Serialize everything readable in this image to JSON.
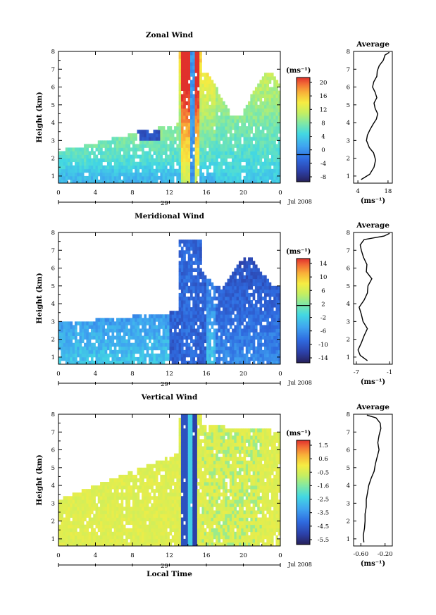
{
  "figure": {
    "xlabel": "Local Time",
    "x_ticks": [
      "0",
      "4",
      "8",
      "12",
      "16",
      "20",
      "0"
    ],
    "date_number": "29",
    "date_month": "Jul 2008",
    "height_label": "Height (km)",
    "height_ticks": [
      "1",
      "2",
      "3",
      "4",
      "5",
      "6",
      "7",
      "8"
    ],
    "avg_title": "Average",
    "unit_label": "(ms⁻¹)"
  },
  "chart_data": [
    {
      "type": "heatmap",
      "title": "Zonal Wind",
      "ylabel": "Height (km)",
      "xlabel": "",
      "x_range": [
        0,
        24
      ],
      "ylim": [
        0.6,
        8.0
      ],
      "colorbar": {
        "ticks": [
          "20",
          "16",
          "12",
          "8",
          "4",
          "0",
          "-4",
          "-8"
        ],
        "min": -10,
        "max": 22
      },
      "profile": {
        "title": "Average",
        "x_ticks": [
          "4",
          "18"
        ],
        "xlim": [
          2,
          20
        ],
        "heights": [
          0.8,
          1.1,
          1.5,
          1.9,
          2.3,
          2.6,
          3.0,
          3.3,
          3.6,
          3.9,
          4.2,
          4.5,
          4.8,
          5.1,
          5.4,
          5.7,
          6.0,
          6.3,
          6.6,
          6.9,
          7.2,
          7.5,
          7.8,
          7.95
        ],
        "values": [
          5.5,
          9.5,
          11.5,
          12.2,
          11.3,
          9.3,
          8.0,
          8.4,
          9.6,
          11.0,
          12.6,
          13.2,
          12.0,
          11.5,
          12.8,
          12.0,
          10.8,
          11.4,
          12.8,
          13.0,
          13.9,
          15.8,
          16.6,
          18.6
        ]
      }
    },
    {
      "type": "heatmap",
      "title": "Meridional Wind",
      "ylabel": "Height (km)",
      "xlabel": "",
      "x_range": [
        0,
        24
      ],
      "ylim": [
        0.6,
        8.0
      ],
      "colorbar": {
        "ticks": [
          "14",
          "10",
          "6",
          "2",
          "-2",
          "-6",
          "-10",
          "-14"
        ],
        "min": -16,
        "max": 16
      },
      "profile": {
        "title": "Average",
        "x_ticks": [
          "-7",
          "-1"
        ],
        "xlim": [
          -7.5,
          -0.5
        ],
        "heights": [
          0.8,
          1.1,
          1.4,
          1.8,
          2.2,
          2.6,
          3.0,
          3.4,
          3.8,
          4.2,
          4.6,
          5.0,
          5.4,
          5.8,
          6.2,
          6.6,
          7.0,
          7.3,
          7.6,
          7.8,
          7.95
        ],
        "values": [
          -5.0,
          -6.3,
          -6.7,
          -6.1,
          -5.6,
          -5.0,
          -5.8,
          -6.1,
          -6.5,
          -5.6,
          -5.0,
          -4.9,
          -4.2,
          -5.2,
          -5.1,
          -5.7,
          -6.1,
          -6.3,
          -5.6,
          -2.0,
          -1.0
        ]
      }
    },
    {
      "type": "heatmap",
      "title": "Vertical Wind",
      "ylabel": "Height (km)",
      "xlabel": "Local Time",
      "x_range": [
        0,
        24
      ],
      "ylim": [
        0.6,
        8.0
      ],
      "colorbar": {
        "ticks": [
          "1.5",
          "0.6",
          "-0.5",
          "-1.6",
          "-2.5",
          "-3.5",
          "-4.5",
          "-5.5"
        ],
        "min": -6.0,
        "max": 2.0
      },
      "profile": {
        "title": "Average",
        "x_ticks": [
          "-0.60",
          "-0.20"
        ],
        "xlim": [
          -0.72,
          -0.08
        ],
        "heights": [
          0.8,
          1.2,
          1.6,
          2.0,
          2.4,
          2.8,
          3.2,
          3.6,
          4.0,
          4.4,
          4.8,
          5.2,
          5.6,
          6.0,
          6.4,
          6.8,
          7.2,
          7.5,
          7.8,
          7.95
        ],
        "values": [
          -0.55,
          -0.56,
          -0.54,
          -0.53,
          -0.53,
          -0.51,
          -0.51,
          -0.49,
          -0.47,
          -0.43,
          -0.38,
          -0.36,
          -0.33,
          -0.3,
          -0.32,
          -0.3,
          -0.27,
          -0.28,
          -0.35,
          -0.5
        ]
      }
    }
  ]
}
